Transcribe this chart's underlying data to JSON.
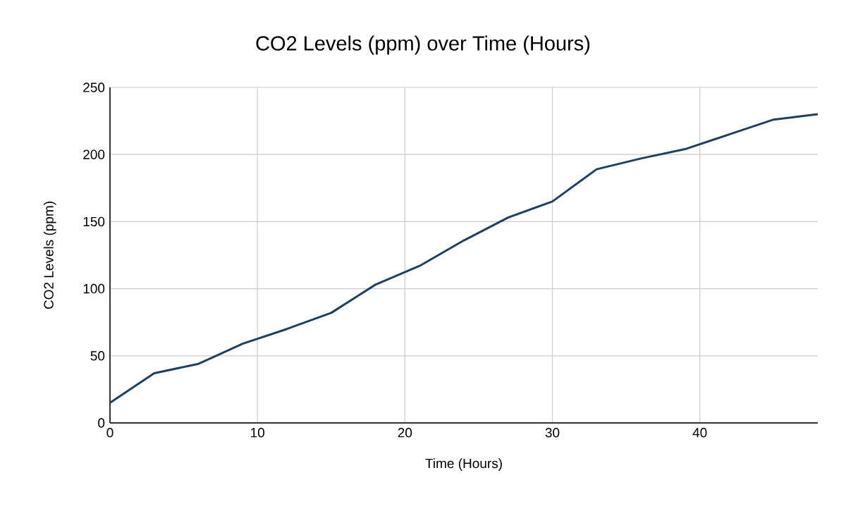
{
  "chart_data": {
    "type": "line",
    "title": "CO2 Levels (ppm) over Time (Hours)",
    "xlabel": "Time (Hours)",
    "ylabel": "CO2 Levels (ppm)",
    "x": [
      0,
      3,
      6,
      9,
      12,
      15,
      18,
      21,
      24,
      27,
      30,
      33,
      36,
      39,
      42,
      45,
      48
    ],
    "series": [
      {
        "color": "#1c4066",
        "values": [
          15,
          37,
          44,
          59,
          70,
          82,
          103,
          117,
          136,
          153,
          165,
          189,
          197,
          204,
          215,
          226,
          230
        ]
      }
    ],
    "xlim": [
      0,
      48
    ],
    "xticks": [
      0,
      10,
      20,
      30,
      40
    ],
    "ylim": [
      0,
      250
    ],
    "yticks": [
      0,
      50,
      100,
      150,
      200,
      250
    ],
    "grid": true,
    "legend": false,
    "marker": "none",
    "line_style": "solid"
  }
}
